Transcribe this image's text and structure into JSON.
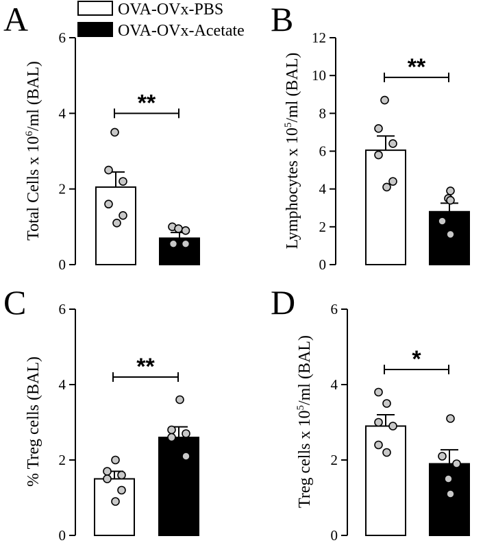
{
  "legend": {
    "entries": [
      {
        "label": "OVA-OVx-PBS",
        "fill": "#ffffff"
      },
      {
        "label": "OVA-OVx-Acetate",
        "fill": "#000000"
      }
    ]
  },
  "colors": {
    "pbs_fill": "#ffffff",
    "acetate_fill": "#000000",
    "point_fill": "#c8c8c8",
    "stroke": "#000000"
  },
  "chart_data": [
    {
      "type": "bar",
      "panel": "A",
      "ylabel_main": "Total Cells x 10",
      "ylabel_sup": "6",
      "ylabel_end": "/ml (BAL)",
      "ylim": [
        0,
        6
      ],
      "yticks": [
        0,
        2,
        4,
        6
      ],
      "series": [
        {
          "name": "OVA-OVx-PBS",
          "mean": 2.05,
          "sem": 0.4,
          "points": [
            3.5,
            2.5,
            2.2,
            1.6,
            1.3,
            1.1
          ]
        },
        {
          "name": "OVA-OVx-Acetate",
          "mean": 0.7,
          "sem": 0.15,
          "points": [
            1.0,
            0.95,
            0.9,
            0.55,
            0.55
          ]
        }
      ],
      "significance": "**",
      "sig_level": 4.0
    },
    {
      "type": "bar",
      "panel": "B",
      "ylabel_main": "Lymphocytes x 10",
      "ylabel_sup": "5",
      "ylabel_end": "/ml (BAL)",
      "ylim": [
        0,
        12
      ],
      "yticks": [
        0,
        2,
        4,
        6,
        8,
        10,
        12
      ],
      "series": [
        {
          "name": "OVA-OVx-PBS",
          "mean": 6.05,
          "sem": 0.75,
          "points": [
            8.7,
            7.2,
            6.4,
            5.8,
            4.4,
            4.1
          ]
        },
        {
          "name": "OVA-OVx-Acetate",
          "mean": 2.8,
          "sem": 0.45,
          "points": [
            3.9,
            3.5,
            3.4,
            2.3,
            1.6
          ]
        }
      ],
      "significance": "**",
      "sig_level": 9.9
    },
    {
      "type": "bar",
      "panel": "C",
      "ylabel_main": "% Treg cells (BAL)",
      "ylabel_sup": "",
      "ylabel_end": "",
      "ylim": [
        0,
        6
      ],
      "yticks": [
        0,
        2,
        4,
        6
      ],
      "series": [
        {
          "name": "OVA-OVx-PBS",
          "mean": 1.5,
          "sem": 0.2,
          "points": [
            2.0,
            1.7,
            1.6,
            1.5,
            1.2,
            0.9
          ]
        },
        {
          "name": "OVA-OVx-Acetate",
          "mean": 2.6,
          "sem": 0.28,
          "points": [
            3.6,
            2.8,
            2.7,
            2.6,
            2.1
          ]
        }
      ],
      "significance": "**",
      "sig_level": 4.2
    },
    {
      "type": "bar",
      "panel": "D",
      "ylabel_main": "Treg cells x 10",
      "ylabel_sup": "5",
      "ylabel_end": "/ml (BAL)",
      "ylim": [
        0,
        6
      ],
      "yticks": [
        0,
        2,
        4,
        6
      ],
      "series": [
        {
          "name": "OVA-OVx-PBS",
          "mean": 2.9,
          "sem": 0.3,
          "points": [
            3.8,
            3.5,
            3.0,
            2.9,
            2.4,
            2.2
          ]
        },
        {
          "name": "OVA-OVx-Acetate",
          "mean": 1.9,
          "sem": 0.37,
          "points": [
            3.1,
            2.1,
            1.9,
            1.5,
            1.1
          ]
        }
      ],
      "significance": "*",
      "sig_level": 4.4
    }
  ]
}
